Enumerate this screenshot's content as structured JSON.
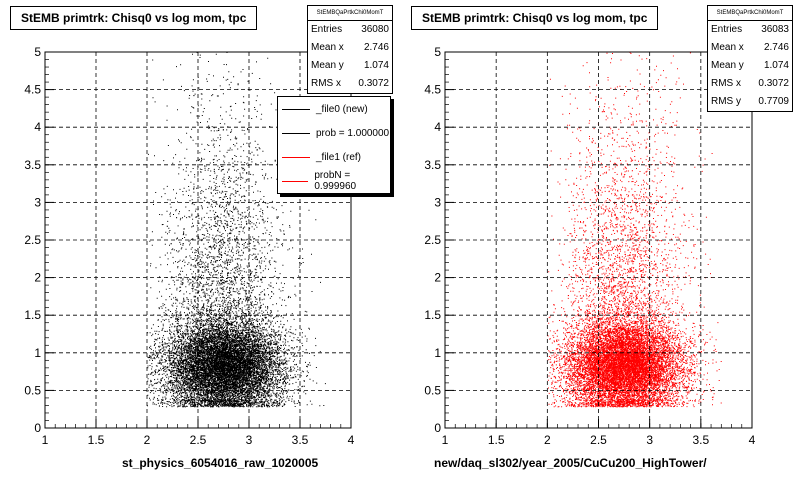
{
  "chart_data": [
    {
      "type": "scatter",
      "title": "StEMB primtrk: Chisq0 vs log mom, tpc",
      "xlabel": "st_physics_6054016_raw_1020005",
      "ylabel": "",
      "xlim": [
        1,
        4
      ],
      "ylim": [
        0,
        5
      ],
      "x_ticks": [
        "1",
        "1.5",
        "2",
        "2.5",
        "3",
        "3.5",
        "4"
      ],
      "y_ticks": [
        "0",
        "0.5",
        "1",
        "1.5",
        "2",
        "2.5",
        "3",
        "3.5",
        "4",
        "4.5",
        "5"
      ],
      "grid": true,
      "marker_color": "#000000",
      "stats": {
        "name": "StEMBQaPrtkChi0MomT",
        "rows": [
          {
            "label": "Entries",
            "value": "36080"
          },
          {
            "label": "Mean x",
            "value": "2.746"
          },
          {
            "label": "Mean y",
            "value": "1.074"
          },
          {
            "label": "RMS x",
            "value": "0.3072"
          }
        ]
      },
      "legend": [
        {
          "label": "_file0 (new)",
          "color": "#000000"
        },
        {
          "label": "prob = 1.000000",
          "color": "#000000"
        },
        {
          "label": "_file1 (ref)",
          "color": "#ff0000"
        },
        {
          "label": "probN = 0.999960",
          "color": "#ff0000"
        }
      ],
      "distribution": {
        "mean_x": 2.746,
        "rms_x": 0.3072,
        "mean_y": 1.074,
        "rms_y": 0.7709,
        "entries": 36080
      }
    },
    {
      "type": "scatter",
      "title": "StEMB primtrk: Chisq0 vs log mom, tpc",
      "xlabel": "new/daq_sl302/year_2005/CuCu200_HighTower/",
      "ylabel": "",
      "xlim": [
        1,
        4
      ],
      "ylim": [
        0,
        5
      ],
      "x_ticks": [
        "1",
        "1.5",
        "2",
        "2.5",
        "3",
        "3.5",
        "4"
      ],
      "y_ticks": [
        "0",
        "0.5",
        "1",
        "1.5",
        "2",
        "2.5",
        "3",
        "3.5",
        "4",
        "4.5",
        "5"
      ],
      "grid": true,
      "marker_color": "#ff0000",
      "stats": {
        "name": "StEMBQaPrtkChi0MomT",
        "rows": [
          {
            "label": "Entries",
            "value": "36083"
          },
          {
            "label": "Mean x",
            "value": "2.746"
          },
          {
            "label": "Mean y",
            "value": "1.074"
          },
          {
            "label": "RMS x",
            "value": "0.3072"
          },
          {
            "label": "RMS y",
            "value": "0.7709"
          }
        ]
      },
      "distribution": {
        "mean_x": 2.746,
        "rms_x": 0.3072,
        "mean_y": 1.074,
        "rms_y": 0.7709,
        "entries": 36083
      }
    }
  ]
}
